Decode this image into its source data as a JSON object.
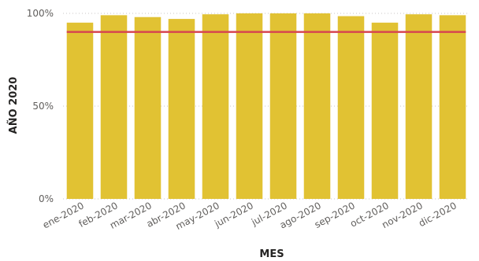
{
  "chart_data": {
    "type": "bar",
    "title": "",
    "xlabel": "MES",
    "ylabel": "AÑO 2020",
    "categories": [
      "ene-2020",
      "feb-2020",
      "mar-2020",
      "abr-2020",
      "may-2020",
      "jun-2020",
      "jul-2020",
      "ago-2020",
      "sep-2020",
      "oct-2020",
      "nov-2020",
      "dic-2020"
    ],
    "values": [
      95,
      99,
      98,
      97,
      99.5,
      100,
      100,
      100,
      98.5,
      95,
      99.5,
      99
    ],
    "target_line": 90,
    "ylim": [
      0,
      100
    ],
    "yticks": [
      0,
      50,
      100
    ],
    "ytick_labels": [
      "0%",
      "50%",
      "100%"
    ],
    "grid": true,
    "bar_color": "#E1C233",
    "line_color": "#D64550"
  }
}
